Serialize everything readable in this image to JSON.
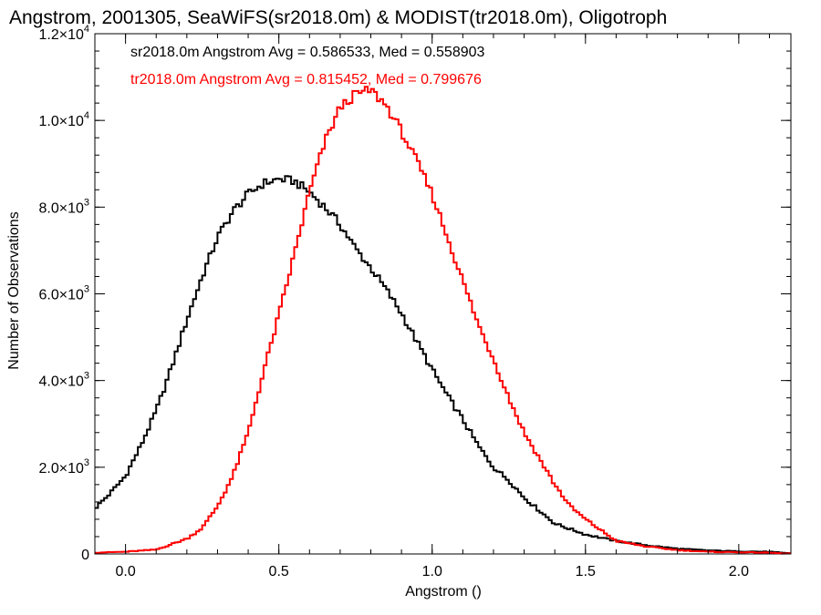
{
  "chart_data": {
    "type": "line",
    "title": "Angstrom, 2001305, SeaWiFS(sr2018.0m) & MODIST(tr2018.0m), Oligotroph",
    "xlabel": "Angstrom ()",
    "ylabel": "Number of Observations",
    "xlim": [
      -0.1,
      2.17
    ],
    "ylim": [
      0,
      12000
    ],
    "x_ticks": [
      0.0,
      0.5,
      1.0,
      1.5,
      2.0
    ],
    "x_tick_labels": [
      "0.0",
      "0.5",
      "1.0",
      "1.5",
      "2.0"
    ],
    "y_ticks": [
      0,
      2000,
      4000,
      6000,
      8000,
      10000,
      12000
    ],
    "y_tick_labels": [
      {
        "mant": "0",
        "exp": ""
      },
      {
        "mant": "2.0×10",
        "exp": "3"
      },
      {
        "mant": "4.0×10",
        "exp": "3"
      },
      {
        "mant": "6.0×10",
        "exp": "3"
      },
      {
        "mant": "8.0×10",
        "exp": "3"
      },
      {
        "mant": "1.0×10",
        "exp": "4"
      },
      {
        "mant": "1.2×10",
        "exp": "4"
      }
    ],
    "grid": false,
    "series": [
      {
        "color": "#000000",
        "style": "histogram-step",
        "x": [
          -0.1,
          -0.05,
          0.0,
          0.05,
          0.1,
          0.15,
          0.2,
          0.25,
          0.3,
          0.35,
          0.4,
          0.45,
          0.5,
          0.55,
          0.6,
          0.65,
          0.7,
          0.75,
          0.8,
          0.85,
          0.9,
          0.95,
          1.0,
          1.05,
          1.1,
          1.15,
          1.2,
          1.25,
          1.3,
          1.35,
          1.4,
          1.5,
          1.6,
          1.7,
          1.8,
          1.9,
          2.0,
          2.1,
          2.15
        ],
        "values": [
          1050,
          1400,
          1800,
          2500,
          3300,
          4300,
          5400,
          6400,
          7300,
          7900,
          8300,
          8550,
          8650,
          8600,
          8350,
          8000,
          7600,
          7050,
          6600,
          6100,
          5550,
          4900,
          4250,
          3650,
          3100,
          2500,
          2000,
          1700,
          1300,
          1000,
          700,
          450,
          300,
          200,
          120,
          80,
          60,
          50,
          20
        ]
      },
      {
        "color": "#ff0000",
        "style": "histogram-step",
        "x": [
          -0.1,
          0.0,
          0.1,
          0.2,
          0.25,
          0.3,
          0.35,
          0.4,
          0.45,
          0.5,
          0.55,
          0.6,
          0.65,
          0.7,
          0.75,
          0.8,
          0.85,
          0.9,
          0.95,
          1.0,
          1.05,
          1.1,
          1.15,
          1.2,
          1.25,
          1.3,
          1.35,
          1.4,
          1.45,
          1.5,
          1.55,
          1.6,
          1.7,
          1.8,
          1.9,
          2.0,
          2.1,
          2.15
        ],
        "values": [
          30,
          50,
          100,
          350,
          600,
          1100,
          1800,
          2800,
          4200,
          5500,
          6900,
          8350,
          9500,
          10300,
          10600,
          10700,
          10350,
          9750,
          9050,
          8300,
          7300,
          6300,
          5300,
          4500,
          3600,
          2800,
          2200,
          1600,
          1100,
          800,
          550,
          300,
          170,
          90,
          50,
          40,
          30,
          10
        ]
      }
    ],
    "annotations": [
      {
        "text": "sr2018.0m Angstrom Avg = 0.586533, Med = 0.558903",
        "color": "#000000"
      },
      {
        "text": "tr2018.0m Angstrom Avg = 0.815452, Med = 0.799676",
        "color": "#ff0000"
      }
    ]
  }
}
